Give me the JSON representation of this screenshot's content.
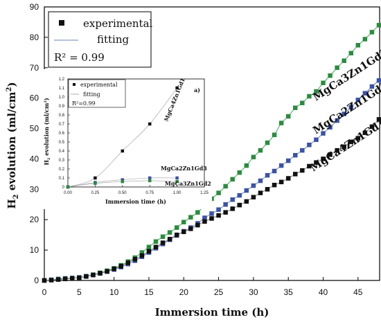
{
  "chart_data": [
    {
      "type": "scatter",
      "title": "",
      "xlabel": "Immersion time (h)",
      "ylabel": "H2 evolution (ml/cm2)",
      "xlim": [
        0,
        48
      ],
      "ylim": [
        0,
        90
      ],
      "x_ticks": [
        "0",
        "5",
        "10",
        "15",
        "20",
        "25",
        "30",
        "35",
        "40",
        "45"
      ],
      "y_ticks": [
        "0",
        "10",
        "20",
        "30",
        "40",
        "50",
        "60",
        "70",
        "80",
        "90"
      ],
      "legend": {
        "placement": "top-left",
        "experimental": "experimental",
        "fitting": "fitting",
        "r2": "R² = 0.99"
      },
      "series": [
        {
          "name": "MgCa3Zn1Gd2",
          "color": "#2a8c3e",
          "x": [
            0,
            1,
            2,
            3,
            4,
            5,
            6,
            7,
            8,
            9,
            10,
            11,
            12,
            13,
            14,
            15,
            16,
            17,
            18,
            19,
            20,
            21,
            22,
            23,
            24,
            25,
            26,
            27,
            28,
            29,
            30,
            31,
            32,
            33,
            34,
            35,
            36,
            37,
            38,
            39,
            40,
            41,
            42,
            43,
            44,
            45,
            46,
            47,
            48
          ],
          "values": [
            0,
            0.2,
            0.5,
            0.7,
            0.8,
            0.9,
            1.4,
            1.9,
            2.5,
            3.2,
            4.0,
            5.0,
            6.2,
            7.5,
            9.2,
            11.0,
            12.8,
            14.4,
            15.8,
            17.4,
            19.2,
            20.8,
            22.4,
            24.6,
            26.9,
            28.8,
            31.0,
            33.3,
            35.5,
            37.8,
            40.6,
            42.8,
            45.3,
            47.9,
            51.8,
            54.0,
            56.8,
            58.4,
            60.6,
            62.2,
            65.0,
            67.4,
            70.0,
            72.3,
            74.8,
            77.4,
            79.4,
            81.7,
            84.0
          ]
        },
        {
          "name": "MgCa2Zn1Gd3",
          "color": "#3a52a8",
          "x": [
            0,
            1,
            2,
            3,
            4,
            5,
            6,
            7,
            8,
            9,
            10,
            11,
            12,
            13,
            14,
            15,
            16,
            17,
            18,
            19,
            20,
            21,
            22,
            23,
            24,
            25,
            26,
            27,
            28,
            29,
            30,
            31,
            32,
            33,
            34,
            35,
            36,
            37,
            38,
            39,
            40,
            41,
            42,
            43,
            44,
            45,
            46,
            47,
            48
          ],
          "values": [
            0,
            0.2,
            0.4,
            0.6,
            0.8,
            1.0,
            1.4,
            1.8,
            2.3,
            2.9,
            3.6,
            4.4,
            5.4,
            6.5,
            7.8,
            9.2,
            10.6,
            12.0,
            13.4,
            14.8,
            16.2,
            17.4,
            18.8,
            20.6,
            22.0,
            23.3,
            25.0,
            26.6,
            28.0,
            29.6,
            31.2,
            32.8,
            34.6,
            36.0,
            37.8,
            39.4,
            41.2,
            42.8,
            44.6,
            46.3,
            48.4,
            50.4,
            52.6,
            54.8,
            57.0,
            59.4,
            61.6,
            63.8,
            65.8
          ]
        },
        {
          "name": "MgCa4Zn1Gd1",
          "color": "#111111",
          "x": [
            0,
            1,
            2,
            3,
            4,
            5,
            6,
            7,
            8,
            9,
            10,
            11,
            12,
            13,
            14,
            15,
            16,
            17,
            18,
            19,
            20,
            21,
            22,
            23,
            24,
            25,
            26,
            27,
            28,
            29,
            30,
            31,
            32,
            33,
            34,
            35,
            36,
            37,
            38,
            39,
            40,
            41,
            42,
            43,
            44,
            45,
            46,
            47,
            48
          ],
          "values": [
            0,
            0.1,
            0.3,
            0.5,
            0.7,
            0.9,
            1.3,
            1.8,
            2.4,
            3.0,
            3.8,
            4.7,
            5.8,
            7.0,
            8.2,
            9.6,
            11.0,
            12.4,
            13.6,
            15.0,
            16.0,
            17.0,
            18.2,
            19.4,
            20.4,
            21.4,
            22.4,
            23.6,
            24.8,
            26.0,
            27.4,
            28.8,
            30.0,
            31.4,
            32.4,
            33.6,
            35.0,
            36.2,
            37.6,
            38.8,
            40.0,
            41.4,
            42.8,
            44.0,
            45.6,
            46.8,
            48.6,
            50.6,
            53.0
          ]
        }
      ]
    },
    {
      "type": "scatter",
      "title": "a)",
      "xlabel": "Immersion time (h)",
      "ylabel": "H2 evolution (ml/cm2)",
      "xlim": [
        0,
        1.25
      ],
      "ylim": [
        0,
        1.2
      ],
      "x_ticks": [
        "0.00",
        "0.25",
        "0.50",
        "0.75",
        "1.00",
        "1.25"
      ],
      "y_ticks": [
        "0",
        "0.1",
        "0.2",
        "0.3",
        "0.4",
        "0.5",
        "0.6",
        "0.7",
        "0.8",
        "0.9",
        "1.0",
        "1.1",
        "1.2"
      ],
      "legend": {
        "placement": "top-left",
        "experimental": "experimental",
        "fitting": "fitting",
        "r2": "R²=0.99"
      },
      "series": [
        {
          "name": "MgCa4Zn1Gd1",
          "color": "#111111",
          "x": [
            0,
            0.25,
            0.5,
            0.75,
            1.0
          ],
          "values": [
            0,
            0.1,
            0.4,
            0.7,
            1.1
          ]
        },
        {
          "name": "MgCa2Zn1Gd3",
          "color": "#3a52a8",
          "x": [
            0,
            0.25,
            0.5,
            0.75,
            1.0
          ],
          "values": [
            0,
            0.05,
            0.08,
            0.1,
            0.1
          ]
        },
        {
          "name": "MgCa3Zn1Gd2",
          "color": "#2a8c3e",
          "x": [
            0,
            0.25,
            0.5,
            0.75,
            1.0
          ],
          "values": [
            0,
            0.04,
            0.06,
            0.07,
            0.06
          ]
        }
      ]
    }
  ]
}
